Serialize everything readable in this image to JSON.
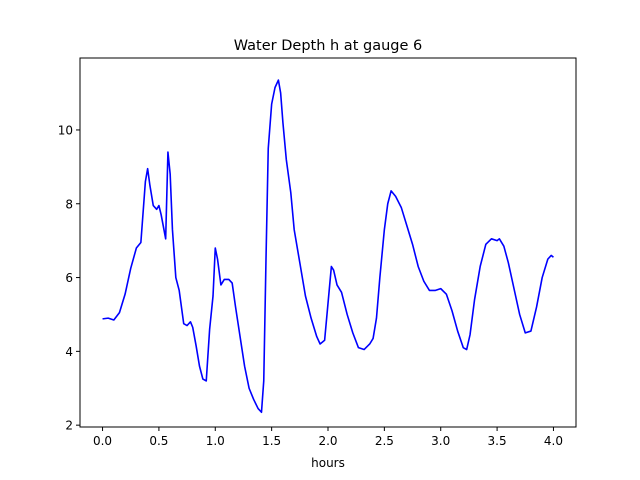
{
  "chart_data": {
    "type": "line",
    "title": "Water Depth h at gauge 6",
    "xlabel": "hours",
    "ylabel": "",
    "xlim": [
      -0.2,
      4.2
    ],
    "ylim": [
      1.95,
      11.95
    ],
    "xticks": [
      0.0,
      0.5,
      1.0,
      1.5,
      2.0,
      2.5,
      3.0,
      3.5,
      4.0
    ],
    "xtick_labels": [
      "0.0",
      "0.5",
      "1.0",
      "1.5",
      "2.0",
      "2.5",
      "3.0",
      "3.5",
      "4.0"
    ],
    "yticks": [
      2,
      4,
      6,
      8,
      10
    ],
    "ytick_labels": [
      "2",
      "4",
      "6",
      "8",
      "10"
    ],
    "grid": false,
    "series": [
      {
        "color": "#0000ff",
        "x": [
          0.0,
          0.05,
          0.1,
          0.15,
          0.2,
          0.25,
          0.3,
          0.34,
          0.38,
          0.4,
          0.42,
          0.45,
          0.48,
          0.5,
          0.52,
          0.56,
          0.58,
          0.6,
          0.62,
          0.65,
          0.68,
          0.72,
          0.75,
          0.78,
          0.8,
          0.83,
          0.86,
          0.89,
          0.92,
          0.95,
          0.98,
          1.0,
          1.02,
          1.05,
          1.08,
          1.1,
          1.12,
          1.15,
          1.18,
          1.22,
          1.26,
          1.3,
          1.34,
          1.38,
          1.41,
          1.43,
          1.45,
          1.47,
          1.5,
          1.53,
          1.56,
          1.58,
          1.6,
          1.63,
          1.67,
          1.7,
          1.75,
          1.8,
          1.85,
          1.9,
          1.93,
          1.97,
          2.0,
          2.03,
          2.05,
          2.08,
          2.12,
          2.17,
          2.22,
          2.27,
          2.32,
          2.37,
          2.4,
          2.43,
          2.46,
          2.5,
          2.53,
          2.56,
          2.6,
          2.65,
          2.7,
          2.75,
          2.8,
          2.85,
          2.9,
          2.95,
          3.0,
          3.05,
          3.1,
          3.15,
          3.2,
          3.23,
          3.26,
          3.3,
          3.35,
          3.4,
          3.45,
          3.5,
          3.52,
          3.56,
          3.6,
          3.65,
          3.7,
          3.75,
          3.8,
          3.85,
          3.9,
          3.95,
          3.98,
          4.0
        ],
        "y": [
          4.88,
          4.9,
          4.85,
          5.05,
          5.55,
          6.25,
          6.8,
          6.95,
          8.6,
          8.95,
          8.5,
          7.95,
          7.85,
          7.95,
          7.7,
          7.05,
          9.4,
          8.8,
          7.3,
          6.0,
          5.65,
          4.75,
          4.7,
          4.8,
          4.65,
          4.15,
          3.6,
          3.25,
          3.2,
          4.6,
          5.5,
          6.8,
          6.5,
          5.8,
          5.95,
          5.95,
          5.95,
          5.85,
          5.2,
          4.4,
          3.6,
          3.0,
          2.7,
          2.45,
          2.35,
          3.2,
          6.5,
          9.5,
          10.7,
          11.15,
          11.35,
          11.0,
          10.2,
          9.2,
          8.3,
          7.3,
          6.4,
          5.5,
          4.9,
          4.4,
          4.2,
          4.3,
          5.3,
          6.3,
          6.2,
          5.8,
          5.6,
          5.0,
          4.5,
          4.1,
          4.05,
          4.2,
          4.35,
          4.9,
          6.0,
          7.3,
          8.0,
          8.35,
          8.2,
          7.9,
          7.4,
          6.9,
          6.3,
          5.9,
          5.65,
          5.65,
          5.7,
          5.55,
          5.1,
          4.55,
          4.1,
          4.05,
          4.45,
          5.4,
          6.3,
          6.9,
          7.05,
          7.0,
          7.05,
          6.85,
          6.4,
          5.7,
          5.0,
          4.5,
          4.55,
          5.2,
          6.0,
          6.5,
          6.6,
          6.55
        ]
      }
    ]
  }
}
